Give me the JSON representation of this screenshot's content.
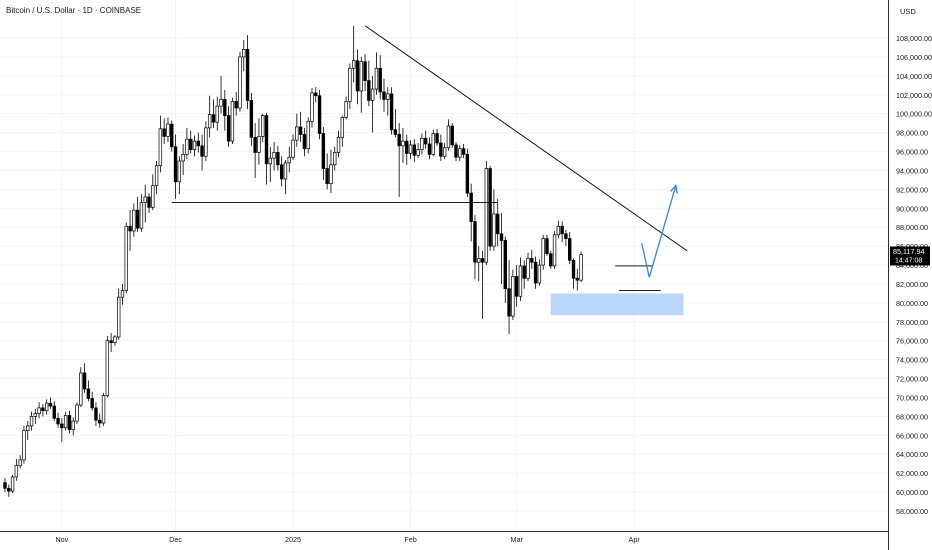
{
  "header": {
    "title": "Bitcoin / U.S. Dollar · 1D · COINBASE"
  },
  "chart_data": {
    "type": "candlestick",
    "title": "Bitcoin / U.S. Dollar · 1D · COINBASE",
    "y_unit": "USD",
    "ylim": [
      57000,
      110500
    ],
    "y_ticks": [
      58000,
      60000,
      62000,
      64000,
      66000,
      68000,
      70000,
      72000,
      74000,
      76000,
      78000,
      80000,
      82000,
      84000,
      86000,
      88000,
      90000,
      92000,
      94000,
      96000,
      98000,
      100000,
      102000,
      104000,
      106000,
      108000
    ],
    "y_tick_labels": [
      "58,000.00",
      "60,000.00",
      "62,000.00",
      "64,000.00",
      "66,000.00",
      "68,000.00",
      "70,000.00",
      "72,000.00",
      "74,000.00",
      "76,000.00",
      "78,000.00",
      "80,000.00",
      "82,000.00",
      "84,000.00",
      "86,000.00",
      "88,000.00",
      "90,000.00",
      "92,000.00",
      "94,000.00",
      "96,000.00",
      "98,000.00",
      "100,000.00",
      "102,000.00",
      "104,000.00",
      "106,000.00",
      "108,000.00"
    ],
    "x_start": "2024-10-17",
    "x_tick_labels": [
      {
        "label": "Nov",
        "date": "2024-11-01"
      },
      {
        "label": "Dec",
        "date": "2024-12-01"
      },
      {
        "label": "2025",
        "date": "2025-01-01"
      },
      {
        "label": "Feb",
        "date": "2025-02-01"
      },
      {
        "label": "Mar",
        "date": "2025-03-01"
      },
      {
        "label": "Apr",
        "date": "2025-04-01"
      }
    ],
    "current_price": {
      "value": 85117.94,
      "label": "85,117.94",
      "countdown": "14:47:08"
    },
    "ohlc": [
      [
        61000,
        61500,
        60000,
        60400
      ],
      [
        60400,
        60800,
        59500,
        60100
      ],
      [
        60100,
        61800,
        59900,
        61600
      ],
      [
        61600,
        63500,
        61200,
        62800
      ],
      [
        62800,
        63900,
        62500,
        63400
      ],
      [
        63400,
        67000,
        63000,
        66500
      ],
      [
        66500,
        67500,
        65500,
        67000
      ],
      [
        67000,
        68500,
        66500,
        68000
      ],
      [
        68000,
        68800,
        67200,
        68300
      ],
      [
        68300,
        69500,
        67800,
        68900
      ],
      [
        68900,
        69300,
        68000,
        68600
      ],
      [
        68600,
        69800,
        68200,
        69400
      ],
      [
        69400,
        70000,
        68800,
        69100
      ],
      [
        69100,
        69600,
        67500,
        67800
      ],
      [
        67800,
        68400,
        66800,
        67200
      ],
      [
        67200,
        67800,
        65300,
        66800
      ],
      [
        66800,
        68500,
        66500,
        68100
      ],
      [
        68100,
        68600,
        66200,
        66600
      ],
      [
        66600,
        67900,
        66000,
        67500
      ],
      [
        67500,
        69500,
        67200,
        69200
      ],
      [
        69200,
        73200,
        69000,
        72600
      ],
      [
        72600,
        73600,
        70500,
        70900
      ],
      [
        70900,
        71800,
        69600,
        69900
      ],
      [
        69900,
        70600,
        68600,
        68900
      ],
      [
        68900,
        69500,
        67000,
        67600
      ],
      [
        67600,
        68300,
        66800,
        67300
      ],
      [
        67300,
        70500,
        67000,
        70200
      ],
      [
        70200,
        76500,
        70000,
        76000
      ],
      [
        76000,
        76800,
        74800,
        75800
      ],
      [
        75800,
        76600,
        75500,
        76400
      ],
      [
        76400,
        81500,
        76100,
        80600
      ],
      [
        80600,
        82000,
        79800,
        81300
      ],
      [
        81300,
        88500,
        81000,
        88100
      ],
      [
        88100,
        89800,
        85500,
        87600
      ],
      [
        87600,
        90500,
        87000,
        89800
      ],
      [
        89800,
        91200,
        87500,
        87900
      ],
      [
        87900,
        91500,
        87500,
        90600
      ],
      [
        90600,
        92500,
        88500,
        91200
      ],
      [
        91200,
        91600,
        89500,
        90100
      ],
      [
        90100,
        93600,
        89800,
        92400
      ],
      [
        92400,
        95000,
        91500,
        94500
      ],
      [
        94500,
        99800,
        93800,
        98400
      ],
      [
        98400,
        99500,
        96800,
        97600
      ],
      [
        97600,
        99600,
        97000,
        98900
      ],
      [
        98900,
        99300,
        96000,
        96500
      ],
      [
        96500,
        97800,
        91000,
        92800
      ],
      [
        92800,
        95500,
        91500,
        95000
      ],
      [
        95000,
        96800,
        93500,
        95700
      ],
      [
        95700,
        98500,
        95200,
        97300
      ],
      [
        97300,
        98200,
        95800,
        96200
      ],
      [
        96200,
        97700,
        95500,
        97100
      ],
      [
        97100,
        98000,
        95900,
        96600
      ],
      [
        96600,
        97800,
        94000,
        95500
      ],
      [
        95500,
        99200,
        95000,
        98500
      ],
      [
        98500,
        101900,
        97500,
        99900
      ],
      [
        99900,
        101500,
        98500,
        99100
      ],
      [
        99100,
        101800,
        98200,
        100800
      ],
      [
        100800,
        104000,
        100000,
        101500
      ],
      [
        101500,
        102500,
        98200,
        99800
      ],
      [
        99800,
        100800,
        96500,
        97100
      ],
      [
        97100,
        101700,
        96800,
        101300
      ],
      [
        101300,
        102300,
        99800,
        100600
      ],
      [
        100600,
        106500,
        100200,
        106000
      ],
      [
        106000,
        107800,
        104500,
        106800
      ],
      [
        106800,
        108300,
        100500,
        101400
      ],
      [
        101400,
        102200,
        96600,
        97500
      ],
      [
        97500,
        99000,
        93200,
        95900
      ],
      [
        95900,
        99500,
        94600,
        97600
      ],
      [
        97600,
        100000,
        97000,
        99800
      ],
      [
        99800,
        100100,
        92500,
        94700
      ],
      [
        94700,
        96500,
        92800,
        95300
      ],
      [
        95300,
        97000,
        94000,
        95900
      ],
      [
        95900,
        96600,
        94000,
        94600
      ],
      [
        94600,
        95500,
        92300,
        93100
      ],
      [
        93100,
        95100,
        91500,
        94800
      ],
      [
        94800,
        96500,
        93800,
        95400
      ],
      [
        95400,
        97800,
        95100,
        97200
      ],
      [
        97200,
        100000,
        96500,
        98600
      ],
      [
        98600,
        100200,
        97000,
        97800
      ],
      [
        97800,
        98500,
        95500,
        96300
      ],
      [
        96300,
        99600,
        95800,
        99200
      ],
      [
        99200,
        102700,
        98500,
        102200
      ],
      [
        102200,
        102800,
        101200,
        101900
      ],
      [
        101900,
        102500,
        97300,
        97900
      ],
      [
        97900,
        98600,
        93000,
        94200
      ],
      [
        94200,
        95800,
        92000,
        92600
      ],
      [
        92600,
        96200,
        91600,
        94600
      ],
      [
        94600,
        96500,
        94000,
        95900
      ],
      [
        95900,
        98200,
        95400,
        97500
      ],
      [
        97500,
        99800,
        96500,
        99600
      ],
      [
        99600,
        101800,
        99400,
        101300
      ],
      [
        101300,
        105300,
        100500,
        104800
      ],
      [
        104800,
        109300,
        103300,
        105600
      ],
      [
        105600,
        106800,
        101000,
        102400
      ],
      [
        102400,
        106000,
        100100,
        105500
      ],
      [
        105500,
        106300,
        102400,
        103500
      ],
      [
        103500,
        105600,
        100800,
        101400
      ],
      [
        101400,
        104000,
        98000,
        102600
      ],
      [
        102600,
        106500,
        102000,
        104800
      ],
      [
        104800,
        106200,
        101500,
        102300
      ],
      [
        102300,
        103700,
        100200,
        101500
      ],
      [
        101500,
        102800,
        99800,
        102100
      ],
      [
        102100,
        102800,
        97800,
        98300
      ],
      [
        98300,
        100500,
        97500,
        97800
      ],
      [
        97800,
        99000,
        91200,
        96600
      ],
      [
        96600,
        98500,
        94800,
        97100
      ],
      [
        97100,
        97800,
        94600,
        95800
      ],
      [
        95800,
        97200,
        95200,
        96700
      ],
      [
        96700,
        97300,
        94900,
        95600
      ],
      [
        95600,
        96900,
        95300,
        96200
      ],
      [
        96200,
        97900,
        95700,
        97400
      ],
      [
        97400,
        98200,
        96300,
        96800
      ],
      [
        96800,
        97500,
        95200,
        95700
      ],
      [
        95700,
        98300,
        95500,
        97900
      ],
      [
        97900,
        98400,
        96600,
        96900
      ],
      [
        96900,
        97800,
        95000,
        95500
      ],
      [
        95500,
        96900,
        95200,
        96400
      ],
      [
        96400,
        99400,
        96100,
        98700
      ],
      [
        98700,
        99000,
        96400,
        96700
      ],
      [
        96700,
        97000,
        95000,
        95400
      ],
      [
        95400,
        96700,
        95000,
        96300
      ],
      [
        96300,
        96800,
        95300,
        95700
      ],
      [
        95700,
        96300,
        91200,
        91600
      ],
      [
        91600,
        92600,
        86500,
        88600
      ],
      [
        88600,
        89300,
        82500,
        84300
      ],
      [
        84300,
        86000,
        82300,
        84700
      ],
      [
        84700,
        85500,
        78300,
        84300
      ],
      [
        84300,
        95000,
        84000,
        94200
      ],
      [
        94200,
        94500,
        85500,
        86000
      ],
      [
        86000,
        92000,
        85500,
        89400
      ],
      [
        89400,
        91000,
        86000,
        87300
      ],
      [
        87300,
        89500,
        82000,
        86600
      ],
      [
        86600,
        87000,
        80000,
        81500
      ],
      [
        81500,
        84500,
        76700,
        78600
      ],
      [
        78600,
        83500,
        78200,
        82800
      ],
      [
        82800,
        84000,
        79600,
        80700
      ],
      [
        80700,
        84800,
        80200,
        83900
      ],
      [
        83900,
        84500,
        81500,
        82600
      ],
      [
        82600,
        85300,
        82300,
        84700
      ],
      [
        84700,
        85600,
        83600,
        84300
      ],
      [
        84300,
        84900,
        81500,
        82100
      ],
      [
        82100,
        84600,
        81800,
        84000
      ],
      [
        84000,
        87200,
        83500,
        86800
      ],
      [
        86800,
        87200,
        85000,
        85200
      ],
      [
        85200,
        85500,
        83600,
        83900
      ],
      [
        83900,
        87600,
        83600,
        87200
      ],
      [
        87200,
        88700,
        86800,
        88100
      ],
      [
        88100,
        88600,
        86400,
        87300
      ],
      [
        87300,
        87700,
        86000,
        86800
      ],
      [
        86800,
        87500,
        84100,
        84500
      ],
      [
        84500,
        84700,
        81500,
        82600
      ],
      [
        82600,
        83600,
        81300,
        82400
      ],
      [
        82400,
        85400,
        82200,
        85100
      ]
    ],
    "annotations": [
      {
        "kind": "trendline",
        "from": [
          "2025-01-20",
          109300
        ],
        "to": [
          "2025-04-15",
          85500
        ],
        "color": "#000000"
      },
      {
        "kind": "horizontal",
        "from": [
          "2024-11-30",
          90600
        ],
        "to": [
          "2025-02-24",
          90600
        ],
        "color": "#000000"
      },
      {
        "kind": "horizontal",
        "from": [
          "2025-03-28",
          81300
        ],
        "to": [
          "2025-04-08",
          81300
        ],
        "color": "#000000"
      },
      {
        "kind": "horizontal",
        "from": [
          "2025-03-27",
          83900
        ],
        "to": [
          "2025-04-06",
          83900
        ],
        "color": "#000000"
      },
      {
        "kind": "zone",
        "from": [
          "2025-03-10",
          81000
        ],
        "to": [
          "2025-04-14",
          78700
        ],
        "color": "#bbd6fb"
      },
      {
        "kind": "polyline",
        "points": [
          [
            "2025-04-03",
            86300
          ],
          [
            "2025-04-05",
            82700
          ],
          [
            "2025-04-12",
            92400
          ]
        ],
        "color": "#2e86e8"
      }
    ],
    "colors": {
      "up": "#ffffff",
      "down": "#000000",
      "outline": "#000000"
    },
    "grid": true
  }
}
